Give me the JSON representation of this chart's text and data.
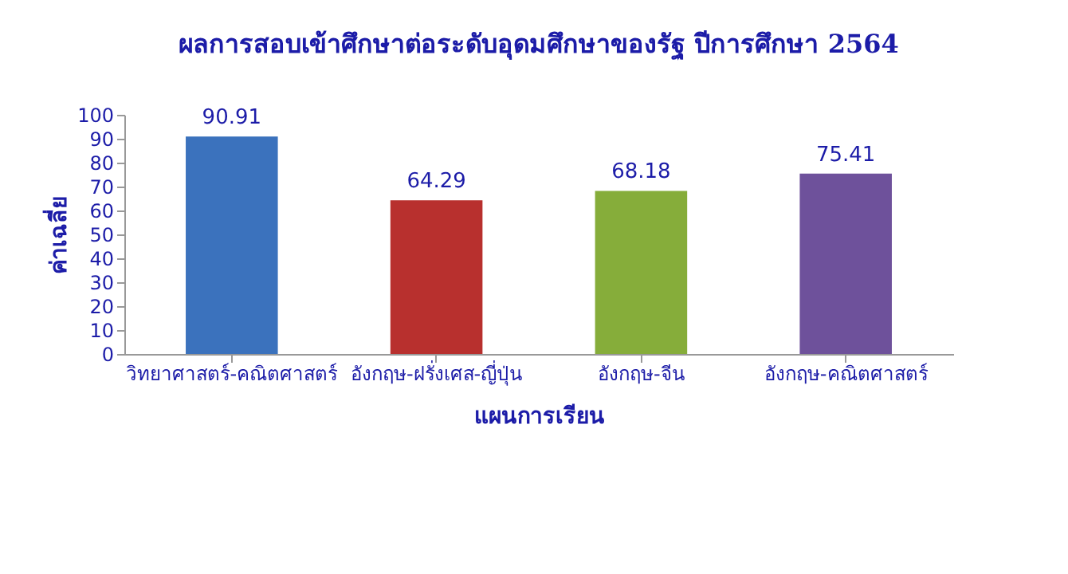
{
  "chart_data": {
    "type": "bar",
    "title": "ผลการสอบเข้าศึกษาต่อระดับอุดมศึกษาของรัฐ ปีการศึกษา 2564",
    "xlabel": "แผนการเรียน",
    "ylabel": "ค่าเฉลี่ย",
    "categories": [
      "วิทยาศาสตร์-คณิตศาสตร์",
      "อังกฤษ-ฝรั่งเศส-ญี่ปุ่น",
      "อังกฤษ-จีน",
      "อังกฤษ-คณิตศาสตร์"
    ],
    "values": [
      90.91,
      64.29,
      68.18,
      75.41
    ],
    "colors": [
      "#3b72bd",
      "#b8302e",
      "#86ad3a",
      "#6e519b"
    ],
    "ylim": [
      0,
      100
    ],
    "yticks": [
      0,
      10,
      20,
      30,
      40,
      50,
      60,
      70,
      80,
      90,
      100
    ],
    "data_labels": true,
    "grid": false
  }
}
